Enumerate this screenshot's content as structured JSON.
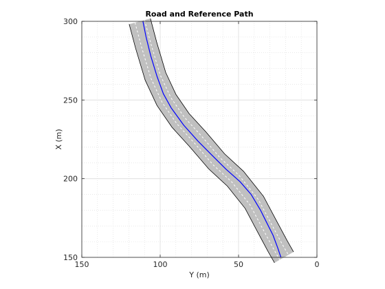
{
  "chart_data": {
    "type": "line",
    "title": "Road and Reference Path",
    "xlabel": "Y (m)",
    "ylabel": "X (m)",
    "x_axis": {
      "quantity": "Y (m)",
      "range": [
        150,
        0
      ],
      "reversed": true,
      "ticks": [
        150,
        100,
        50,
        0
      ],
      "tick_labels": [
        "150",
        "100",
        "50",
        "0"
      ]
    },
    "y_axis": {
      "quantity": "X (m)",
      "range": [
        150,
        300
      ],
      "ticks": [
        150,
        200,
        250,
        300
      ],
      "tick_labels": [
        "150",
        "200",
        "250",
        "300"
      ]
    },
    "grid": "on",
    "minor_grid": "on",
    "road": {
      "fill_color": "#c0c0c0",
      "edge_color": "#000000",
      "lane_marking_color": "#ffffff",
      "center_line": [
        {
          "Y": 113,
          "X": 300
        },
        {
          "Y": 109,
          "X": 285
        },
        {
          "Y": 103,
          "X": 265
        },
        {
          "Y": 96,
          "X": 250
        },
        {
          "Y": 87,
          "X": 237
        },
        {
          "Y": 76,
          "X": 225
        },
        {
          "Y": 64,
          "X": 211
        },
        {
          "Y": 52,
          "X": 200
        },
        {
          "Y": 40,
          "X": 185
        },
        {
          "Y": 32,
          "X": 170
        },
        {
          "Y": 25,
          "X": 157
        },
        {
          "Y": 21,
          "X": 150
        }
      ],
      "half_width": 7
    },
    "series": [
      {
        "color": "#0000ff",
        "points": [
          {
            "Y": 111,
            "X": 300
          },
          {
            "Y": 109,
            "X": 290
          },
          {
            "Y": 106,
            "X": 278
          },
          {
            "Y": 102,
            "X": 265
          },
          {
            "Y": 98,
            "X": 254
          },
          {
            "Y": 93,
            "X": 245
          },
          {
            "Y": 85,
            "X": 234
          },
          {
            "Y": 76,
            "X": 224
          },
          {
            "Y": 67,
            "X": 215
          },
          {
            "Y": 58,
            "X": 206
          },
          {
            "Y": 49,
            "X": 198
          },
          {
            "Y": 42,
            "X": 190
          },
          {
            "Y": 36,
            "X": 180
          },
          {
            "Y": 32,
            "X": 172
          },
          {
            "Y": 28,
            "X": 164
          },
          {
            "Y": 25,
            "X": 156
          },
          {
            "Y": 23,
            "X": 150
          }
        ]
      }
    ]
  }
}
